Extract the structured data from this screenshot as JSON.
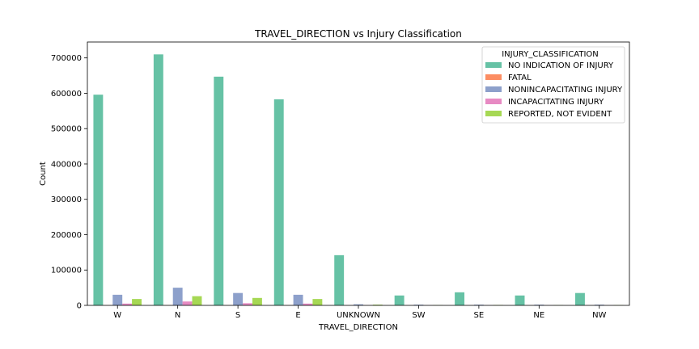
{
  "chart_data": {
    "type": "bar",
    "title": "TRAVEL_DIRECTION vs Injury Classification",
    "xlabel": "TRAVEL_DIRECTION",
    "ylabel": "Count",
    "ylim": [
      0,
      745000
    ],
    "yticks": [
      0,
      100000,
      200000,
      300000,
      400000,
      500000,
      600000,
      700000
    ],
    "ytick_labels": [
      "0",
      "100000",
      "200000",
      "300000",
      "400000",
      "500000",
      "600000",
      "700000"
    ],
    "grid": false,
    "legend_title": "INJURY_CLASSIFICATION",
    "legend_position": "top-right",
    "categories": [
      "W",
      "N",
      "S",
      "E",
      "UNKNOWN",
      "SW",
      "SE",
      "NE",
      "NW"
    ],
    "series": [
      {
        "name": "NO INDICATION OF INJURY",
        "color": "#66c2a5",
        "values": [
          596000,
          710000,
          647000,
          583000,
          142000,
          28000,
          37000,
          28000,
          35000
        ]
      },
      {
        "name": "FATAL",
        "color": "#fc8d62",
        "values": [
          400,
          500,
          400,
          400,
          100,
          50,
          50,
          50,
          50
        ]
      },
      {
        "name": "NONINCAPACITATING INJURY",
        "color": "#8da0cb",
        "values": [
          30000,
          50000,
          35000,
          30000,
          3000,
          2000,
          2000,
          2000,
          2000
        ]
      },
      {
        "name": "INCAPACITATING INJURY",
        "color": "#e78ac3",
        "values": [
          5000,
          11000,
          6000,
          5000,
          500,
          400,
          400,
          400,
          400
        ]
      },
      {
        "name": "REPORTED, NOT EVIDENT",
        "color": "#a6d854",
        "values": [
          18000,
          26000,
          21000,
          18000,
          2000,
          900,
          1200,
          900,
          1000
        ]
      }
    ]
  }
}
